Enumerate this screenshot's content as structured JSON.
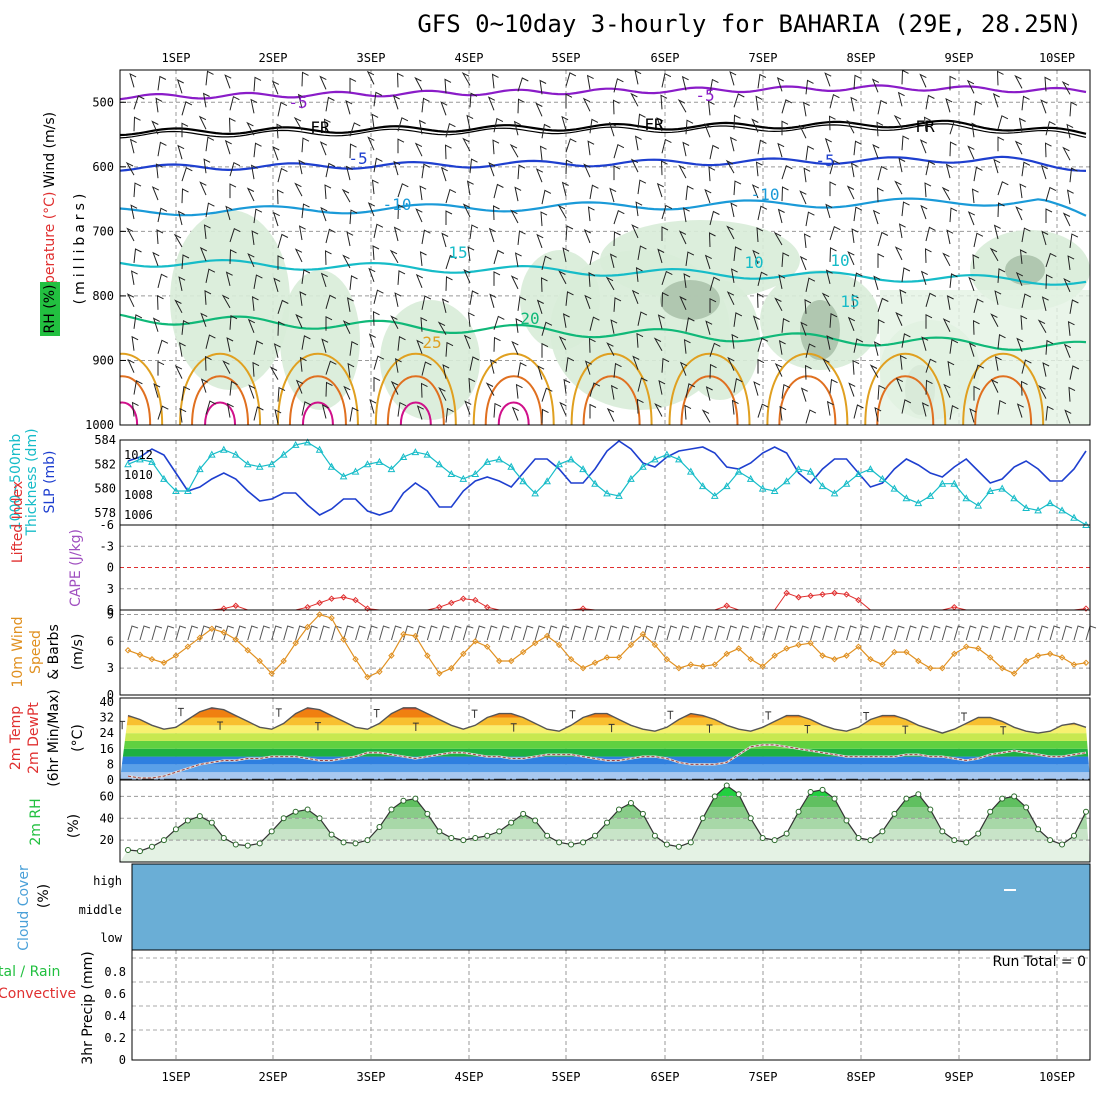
{
  "title": "GFS 0~10day 3-hourly for BAHARIA (29E, 28.25N)",
  "dates": [
    "1SEP",
    "2SEP",
    "3SEP",
    "4SEP",
    "5SEP",
    "6SEP",
    "7SEP",
    "8SEP",
    "9SEP",
    "10SEP"
  ],
  "colors": {
    "purple": "#8a1cc8",
    "black": "#000000",
    "blue": "#1e3fcf",
    "sky": "#1a9ad8",
    "cyan": "#16bcc8",
    "green": "#10b878",
    "orange": "#e0a020",
    "darkorange": "#e07020",
    "magenta": "#d0108a",
    "slp": "#1e3fcf",
    "thk": "#16bcc8",
    "li": "#e03030",
    "wind": "#e09020",
    "rh": "#22c040",
    "cloud": "#6aaed6"
  },
  "labels": {
    "p1_wind": "Wind (m/s)",
    "p1_temp": "Temperature (°C)",
    "p1_rh": "RH (%)",
    "p1_mb": "(millibars)",
    "p2_thk": "1000~500mb",
    "p2_thk2": "Thickness (dm)",
    "p2_slp": "SLP (mb)",
    "p3_li": "Lifted Index",
    "p3_cape": "CAPE (J/kg)",
    "p4_a": "10m Wind",
    "p4_b": "Speed",
    "p4_c": "& Barbs",
    "p4_d": "(m/s)",
    "p5_a": "2m Temp",
    "p5_b": "2m DewPt",
    "p5_c": "(6hr Min/Max)",
    "p5_d": "(°C)",
    "p6_a": "2m RH",
    "p6_b": "(%)",
    "p7_a": "Cloud Cover",
    "p7_b": "(%)",
    "p8_a": "tal / Rain",
    "p8_b": "Convective",
    "p8_c": "3hr Precip (mm)",
    "run_total": "Run Total = 0"
  },
  "pressure_ticks": [
    "500",
    "600",
    "700",
    "800",
    "900",
    "1000"
  ],
  "contour_labels": [
    {
      "text": "-5",
      "color": "purple"
    },
    {
      "text": "-5",
      "color": "purple"
    },
    {
      "text": "FR",
      "color": "black"
    },
    {
      "text": "FR",
      "color": "black"
    },
    {
      "text": "FR",
      "color": "black"
    },
    {
      "text": "-5",
      "color": "blue"
    },
    {
      "text": "-5",
      "color": "blue"
    },
    {
      "text": "-10",
      "color": "sky"
    },
    {
      "text": "-10",
      "color": "sky"
    },
    {
      "text": "15",
      "color": "cyan"
    },
    {
      "text": "10",
      "color": "cyan"
    },
    {
      "text": "10",
      "color": "cyan"
    },
    {
      "text": "15",
      "color": "cyan"
    },
    {
      "text": "20",
      "color": "green"
    },
    {
      "text": "25",
      "color": "orange"
    }
  ],
  "p2_thk_ticks": [
    "584",
    "582",
    "580",
    "578"
  ],
  "p2_slp_ticks": [
    "1012",
    "1010",
    "1008",
    "1006"
  ],
  "p3_ticks": [
    "-6",
    "-3",
    "0",
    "3",
    "6"
  ],
  "p4_ticks": [
    "9",
    "6",
    "3",
    "0"
  ],
  "p5_ticks": [
    "40",
    "32",
    "24",
    "16",
    "8",
    "0"
  ],
  "p6_ticks": [
    "60",
    "40",
    "20"
  ],
  "p7_ticks": [
    "high",
    "middle",
    "low"
  ],
  "p8_ticks": [
    "0.8",
    "0.6",
    "0.4",
    "0.2",
    "0"
  ],
  "chart_data": [
    {
      "type": "line",
      "panel": "slp_thickness",
      "x_unit": "days from 1SEP 00Z (3-hourly)",
      "series": [
        {
          "axis": "slp",
          "unit": "mb",
          "values": [
            1011.4,
            1011.8,
            1012.6,
            1012.0,
            1010.2,
            1008.4,
            1008.8,
            1009.6,
            1010.2,
            1009.6,
            1008.4,
            1007.4,
            1007.6,
            1008.2,
            1008.2,
            1007.0,
            1006.0,
            1006.6,
            1007.6,
            1007.6,
            1006.4,
            1006.0,
            1006.4,
            1008.2,
            1009.2,
            1008.4,
            1006.8,
            1006.8,
            1008.4,
            1009.4,
            1009.8,
            1009.4,
            1008.8,
            1010.2,
            1011.6,
            1011.6,
            1010.6,
            1009.2,
            1009.2,
            1010.6,
            1012.4,
            1013.4,
            1012.6,
            1011.2,
            1010.8,
            1011.8,
            1012.4,
            1012.6,
            1012.8,
            1012.2,
            1010.8,
            1010.6,
            1011.2,
            1012.2,
            1012.8,
            1012.2,
            1010.2,
            1009.2,
            1010.6,
            1011.6,
            1011.6,
            1010.2,
            1008.8,
            1009.2,
            1010.6,
            1011.6,
            1011.0,
            1010.2,
            1009.8,
            1010.8,
            1011.6,
            1010.4,
            1009.2,
            1009.6,
            1010.8,
            1011.4,
            1010.6,
            1009.4,
            1009.4,
            1010.6,
            1012.4
          ]
        },
        {
          "axis": "thickness",
          "unit": "dm",
          "values": [
            582.0,
            582.4,
            582.2,
            580.8,
            579.8,
            579.8,
            581.6,
            582.8,
            583.2,
            582.8,
            582.0,
            581.8,
            582.0,
            582.8,
            583.6,
            583.8,
            583.2,
            581.8,
            581.0,
            581.4,
            582.0,
            582.2,
            581.6,
            582.6,
            583.0,
            582.8,
            582.0,
            581.2,
            580.8,
            581.2,
            582.2,
            582.4,
            581.8,
            580.6,
            579.6,
            580.6,
            582.0,
            582.4,
            581.6,
            580.4,
            579.6,
            579.4,
            580.8,
            581.8,
            582.4,
            582.8,
            582.4,
            581.4,
            580.2,
            579.4,
            580.2,
            581.4,
            580.8,
            580.0,
            579.8,
            580.6,
            581.6,
            581.4,
            580.2,
            579.6,
            580.4,
            581.2,
            581.6,
            580.8,
            580.0,
            579.2,
            578.8,
            579.4,
            580.4,
            580.4,
            579.2,
            578.6,
            579.8,
            580.0,
            579.2,
            578.4,
            578.2,
            578.8,
            578.2,
            577.6,
            577.0
          ]
        }
      ],
      "ylim_slp": [
        1005,
        1013.5
      ],
      "ylim_thickness": [
        577,
        584
      ]
    },
    {
      "type": "line",
      "panel": "lifted_index",
      "unit": "°C",
      "ylim": [
        -6,
        6
      ],
      "values_note": "",
      "values": [
        6,
        6,
        6,
        6,
        6,
        6,
        6,
        6,
        5.8,
        5.4,
        6,
        6,
        6,
        6,
        6,
        5.6,
        5.0,
        4.4,
        4.2,
        4.6,
        5.8,
        6,
        6,
        6,
        6,
        6,
        5.6,
        5.0,
        4.4,
        4.6,
        5.6,
        6,
        6,
        6,
        6,
        6,
        6,
        6,
        5.8,
        6,
        6,
        6,
        6,
        6,
        6,
        6,
        6,
        6,
        6,
        6,
        5.4,
        6,
        6,
        6,
        6,
        3.6,
        4.2,
        4.0,
        3.8,
        3.6,
        3.8,
        4.6,
        6,
        6,
        6,
        6,
        6,
        6,
        6,
        5.6,
        6,
        6,
        6,
        6,
        6,
        6,
        6,
        6,
        6,
        6,
        5.8
      ]
    },
    {
      "type": "line",
      "panel": "10m_wind",
      "unit": "m/s",
      "ylim": [
        0,
        9.5
      ],
      "values": [
        5.0,
        4.5,
        4.0,
        3.6,
        4.4,
        5.4,
        6.4,
        7.4,
        7.0,
        6.2,
        5.0,
        3.8,
        2.4,
        3.8,
        5.8,
        7.6,
        9.0,
        8.6,
        6.2,
        4.0,
        2.0,
        2.6,
        4.4,
        6.8,
        6.6,
        4.4,
        2.4,
        3.0,
        4.6,
        6.0,
        5.4,
        3.8,
        3.8,
        4.8,
        5.8,
        6.6,
        5.6,
        4.0,
        3.0,
        3.6,
        4.2,
        4.2,
        5.6,
        6.8,
        5.6,
        4.0,
        3.0,
        3.4,
        3.2,
        3.4,
        4.6,
        5.2,
        4.0,
        3.2,
        4.4,
        5.2,
        5.6,
        5.8,
        4.4,
        4.0,
        4.4,
        5.4,
        4.0,
        3.4,
        4.8,
        4.8,
        3.8,
        3.0,
        3.0,
        4.6,
        5.4,
        5.2,
        4.2,
        3.0,
        2.4,
        3.8,
        4.4,
        4.6,
        4.2,
        3.4,
        3.6
      ]
    },
    {
      "type": "area",
      "panel": "2m_temperature",
      "unit": "°C",
      "ylim": [
        0,
        42
      ],
      "temp": [
        33,
        31,
        28,
        26,
        27,
        31,
        35,
        37,
        36,
        33,
        30,
        27,
        26,
        29,
        34,
        37,
        36,
        33,
        30,
        27,
        26,
        29,
        34,
        37,
        37,
        34,
        31,
        28,
        26,
        28,
        32,
        34,
        34,
        32,
        29,
        26,
        25,
        28,
        32,
        34,
        34,
        31,
        28,
        26,
        25,
        27,
        31,
        34,
        33,
        31,
        28,
        26,
        25,
        27,
        30,
        33,
        33,
        31,
        28,
        26,
        25,
        27,
        31,
        33,
        33,
        31,
        28,
        26,
        24,
        26,
        29,
        32,
        32,
        30,
        27,
        25,
        24,
        25,
        28,
        29,
        27
      ],
      "dewpoint": [
        2,
        1,
        1,
        2,
        4,
        6,
        8,
        9,
        10,
        10,
        11,
        11,
        12,
        12,
        12,
        11,
        10,
        10,
        11,
        12,
        14,
        14,
        13,
        12,
        11,
        12,
        13,
        14,
        14,
        13,
        12,
        12,
        11,
        11,
        12,
        13,
        13,
        13,
        12,
        11,
        10,
        10,
        11,
        12,
        12,
        11,
        9,
        8,
        8,
        8,
        9,
        13,
        17,
        18,
        18,
        17,
        16,
        15,
        14,
        13,
        12,
        12,
        12,
        12,
        12,
        13,
        13,
        12,
        12,
        11,
        10,
        11,
        13,
        14,
        15,
        14,
        13,
        12,
        12,
        13,
        14
      ]
    },
    {
      "type": "area",
      "panel": "2m_rh",
      "unit": "%",
      "ylim": [
        0,
        75
      ],
      "values": [
        11,
        10,
        14,
        20,
        30,
        38,
        42,
        36,
        22,
        16,
        15,
        17,
        28,
        40,
        46,
        48,
        40,
        25,
        18,
        17,
        20,
        32,
        48,
        56,
        58,
        44,
        28,
        22,
        20,
        22,
        24,
        28,
        36,
        44,
        38,
        24,
        18,
        16,
        18,
        24,
        36,
        48,
        54,
        44,
        24,
        16,
        14,
        18,
        40,
        60,
        70,
        62,
        40,
        22,
        20,
        26,
        46,
        64,
        66,
        58,
        38,
        22,
        20,
        28,
        44,
        58,
        62,
        48,
        28,
        20,
        18,
        26,
        46,
        58,
        60,
        50,
        30,
        20,
        16,
        24,
        46
      ]
    },
    {
      "type": "heatmap",
      "panel": "cloud_cover",
      "levels": [
        "high",
        "middle",
        "low"
      ],
      "values_percent": {
        "high": 0,
        "middle": 0,
        "low": 0
      }
    },
    {
      "type": "bar",
      "panel": "precip",
      "unit": "mm",
      "ylim": [
        0,
        1
      ],
      "values": [],
      "run_total": 0
    }
  ]
}
